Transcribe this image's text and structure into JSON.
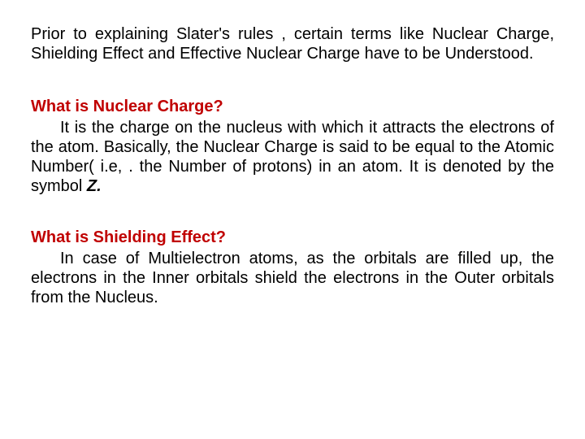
{
  "intro": {
    "text": "Prior to explaining  Slater's rules , certain terms like Nuclear Charge, Shielding Effect and Effective Nuclear Charge have to be Understood."
  },
  "section1": {
    "question": "What is Nuclear  Charge?",
    "answer_part1": "It is the charge on the nucleus with which it attracts the electrons of the atom. Basically, the Nuclear Charge is said to be equal to the Atomic Number( i.e, . the Number of protons) in an atom. It is denoted by the symbol ",
    "symbol": "Z.",
    "color": "#c00000"
  },
  "section2": {
    "question": "What is  Shielding  Effect?",
    "answer": "In case of Multielectron atoms, as the orbitals are filled up, the electrons in the Inner orbitals shield the electrons in the Outer orbitals  from the Nucleus.",
    "color": "#c00000"
  },
  "typography": {
    "body_fontsize": 20,
    "question_fontweight": "bold",
    "text_color": "#000000",
    "background_color": "#ffffff"
  }
}
